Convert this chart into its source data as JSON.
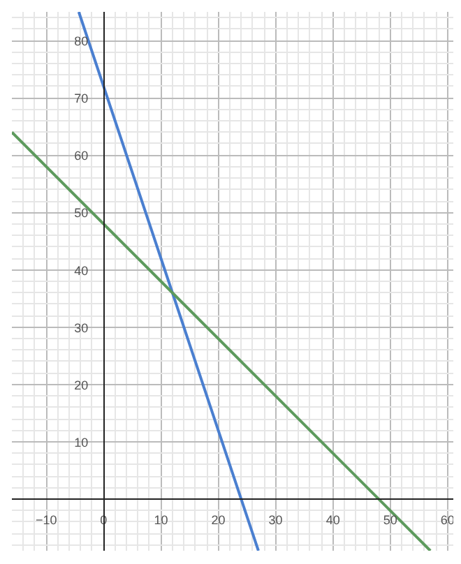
{
  "chart_data": {
    "type": "line",
    "xlim": [
      -16,
      61
    ],
    "ylim": [
      -9,
      85
    ],
    "xticks": [
      -10,
      0,
      10,
      20,
      30,
      40,
      50,
      60
    ],
    "yticks": [
      10,
      20,
      30,
      40,
      50,
      60,
      70,
      80
    ],
    "grid": true,
    "marker": "none",
    "line_style": "solid",
    "series": [
      {
        "color": "#4a7fd0",
        "x": [
          -4.33,
          27
        ],
        "values": [
          85,
          -9
        ]
      },
      {
        "color": "#5d9a5d",
        "x": [
          -16,
          57
        ],
        "values": [
          64,
          -9
        ]
      }
    ]
  }
}
